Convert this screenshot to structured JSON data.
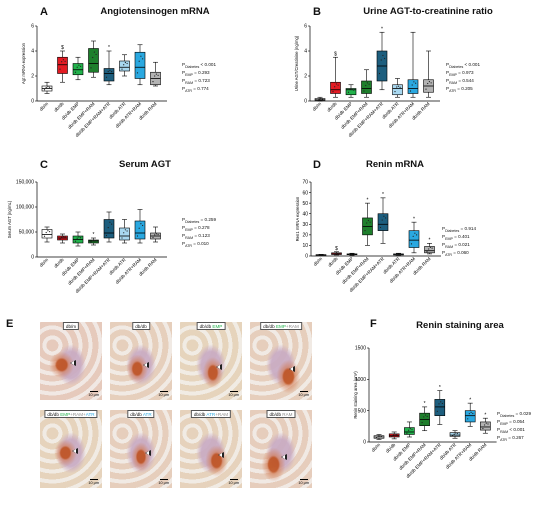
{
  "groups": [
    "db/m",
    "db/db",
    "db/db EMP",
    "db/db EMP+RAM",
    "db/db EMP+RAM+ATR",
    "db/db ATR",
    "db/db ATR+RAM",
    "db/db RAM"
  ],
  "colors": {
    "db/m": "#ffffff",
    "db/db": "#e31b23",
    "db/db EMP": "#22b24c",
    "db/db EMP+RAM": "#1e7f2c",
    "db/db EMP+RAM+ATR": "#1d5e7e",
    "db/db ATR": "#a9d8f0",
    "db/db ATR+RAM": "#2aa8e0",
    "db/db RAM": "#b3b3b3"
  },
  "panels": {
    "A": {
      "label": "A",
      "title": "Angiotensinogen mRNA",
      "stats": [
        "Pₐₐₐₐₐₐ < 0.001"
      ],
      "stats_lines": [
        {
          "sym": "P",
          "sub": "Diabetes",
          "val": "< 0.001"
        },
        {
          "sym": "P",
          "sub": "EMP",
          "val": "= 0.293"
        },
        {
          "sym": "P",
          "sub": "RAM",
          "val": "= 0.723"
        },
        {
          "sym": "P",
          "sub": "ATR",
          "val": "= 0.774"
        }
      ]
    },
    "B": {
      "label": "B",
      "title": "Urine AGT-to-creatinine ratio",
      "stats_lines": [
        {
          "sym": "P",
          "sub": "Diabetes",
          "val": "< 0.001"
        },
        {
          "sym": "P",
          "sub": "EMP",
          "val": "= 0.973"
        },
        {
          "sym": "P",
          "sub": "RAM",
          "val": "= 0.544"
        },
        {
          "sym": "P",
          "sub": "ATR",
          "val": "= 0.205"
        }
      ]
    },
    "C": {
      "label": "C",
      "title": "Serum AGT",
      "stats_lines": [
        {
          "sym": "P",
          "sub": "Diabetes",
          "val": "= 0.259"
        },
        {
          "sym": "P",
          "sub": "EMP",
          "val": "= 0.278"
        },
        {
          "sym": "P",
          "sub": "RAM",
          "val": "= 0.123"
        },
        {
          "sym": "P",
          "sub": "ATR",
          "val": "= 0.010"
        }
      ]
    },
    "D": {
      "label": "D",
      "title": "Renin mRNA",
      "stats_lines": [
        {
          "sym": "P",
          "sub": "Diabetes",
          "val": "= 0.914"
        },
        {
          "sym": "P",
          "sub": "EMP",
          "val": "= 0.401"
        },
        {
          "sym": "P",
          "sub": "RAM",
          "val": "= 0.021"
        },
        {
          "sym": "P",
          "sub": "ATR",
          "val": "= 0.060"
        }
      ]
    },
    "E": {
      "label": "E"
    },
    "F": {
      "label": "F",
      "title": "Renin staining area",
      "stats_lines": [
        {
          "sym": "P",
          "sub": "Diabetes",
          "val": "= 0.029"
        },
        {
          "sym": "P",
          "sub": "EMP",
          "val": "= 0.054"
        },
        {
          "sym": "P",
          "sub": "RAM",
          "val": "< 0.001"
        },
        {
          "sym": "P",
          "sub": "ATR",
          "val": "= 0.267"
        }
      ]
    }
  },
  "micrographs": {
    "scale_label": "10 µm",
    "tiles": [
      {
        "parts": [
          {
            "t": "db/m",
            "c": "#111111"
          }
        ]
      },
      {
        "parts": [
          {
            "t": "db/db",
            "c": "#111111"
          }
        ]
      },
      {
        "parts": [
          {
            "t": "db/db ",
            "c": "#111111"
          },
          {
            "t": "EMP",
            "c": "#22b24c"
          }
        ]
      },
      {
        "parts": [
          {
            "t": "db/db ",
            "c": "#111111"
          },
          {
            "t": "EMP",
            "c": "#22b24c"
          },
          {
            "t": "+RAM",
            "c": "#8a8a8a"
          }
        ]
      },
      {
        "parts": [
          {
            "t": "db/db ",
            "c": "#111111"
          },
          {
            "t": "EMP",
            "c": "#22b24c"
          },
          {
            "t": "+RAM+",
            "c": "#8a8a8a"
          },
          {
            "t": "ATR",
            "c": "#2aa8e0"
          }
        ]
      },
      {
        "parts": [
          {
            "t": "db/db ",
            "c": "#111111"
          },
          {
            "t": "ATR",
            "c": "#2aa8e0"
          }
        ]
      },
      {
        "parts": [
          {
            "t": "db/db ",
            "c": "#111111"
          },
          {
            "t": "ATR",
            "c": "#2aa8e0"
          },
          {
            "t": "+RAM",
            "c": "#8a8a8a"
          }
        ]
      },
      {
        "parts": [
          {
            "t": "db/db ",
            "c": "#111111"
          },
          {
            "t": "RAM",
            "c": "#8a8a8a"
          }
        ]
      }
    ]
  },
  "chart_data": [
    {
      "panel": "A",
      "type": "box",
      "title": "Angiotensinogen mRNA",
      "ylabel": "Agt mRNA expression",
      "ylim": [
        0,
        6
      ],
      "yticks": [
        0,
        2,
        4,
        6
      ],
      "categories": [
        "db/m",
        "db/db",
        "db/db EMP",
        "db/db EMP+RAM",
        "db/db EMP+RAM+ATR",
        "db/db ATR",
        "db/db ATR+RAM",
        "db/db RAM"
      ],
      "boxes": [
        {
          "min": 0.6,
          "q1": 0.8,
          "median": 1.0,
          "q3": 1.2,
          "max": 1.5
        },
        {
          "min": 1.5,
          "q1": 2.2,
          "median": 2.9,
          "q3": 3.5,
          "max": 4.0
        },
        {
          "min": 1.7,
          "q1": 2.1,
          "median": 2.5,
          "q3": 3.0,
          "max": 3.5
        },
        {
          "min": 1.9,
          "q1": 2.3,
          "median": 3.0,
          "q3": 4.2,
          "max": 4.8
        },
        {
          "min": 1.3,
          "q1": 1.6,
          "median": 2.2,
          "q3": 2.6,
          "max": 4.0
        },
        {
          "min": 2.0,
          "q1": 2.4,
          "median": 2.7,
          "q3": 3.2,
          "max": 3.7
        },
        {
          "min": 1.3,
          "q1": 1.8,
          "median": 2.7,
          "q3": 3.9,
          "max": 4.5
        },
        {
          "min": 1.2,
          "q1": 1.3,
          "median": 1.8,
          "q3": 2.3,
          "max": 3.1
        }
      ],
      "markers": [
        "",
        "$",
        "",
        "",
        "*",
        "",
        "",
        ""
      ]
    },
    {
      "panel": "B",
      "type": "box",
      "title": "Urine AGT-to-creatinine ratio",
      "ylabel": "Urine AGT/Creatinine (ng/mg)",
      "ylim": [
        0,
        6
      ],
      "yticks": [
        0,
        2,
        4,
        6
      ],
      "categories": [
        "db/m",
        "db/db",
        "db/db EMP",
        "db/db EMP+RAM",
        "db/db EMP+RAM+ATR",
        "db/db ATR",
        "db/db ATR+RAM",
        "db/db RAM"
      ],
      "boxes": [
        {
          "min": 0.0,
          "q1": 0.05,
          "median": 0.1,
          "q3": 0.2,
          "max": 0.3
        },
        {
          "min": 0.3,
          "q1": 0.6,
          "median": 0.9,
          "q3": 1.5,
          "max": 3.5
        },
        {
          "min": 0.3,
          "q1": 0.5,
          "median": 0.9,
          "q3": 1.0,
          "max": 1.3
        },
        {
          "min": 0.3,
          "q1": 0.6,
          "median": 1.0,
          "q3": 1.6,
          "max": 2.5
        },
        {
          "min": 0.9,
          "q1": 1.6,
          "median": 2.8,
          "q3": 4.0,
          "max": 5.5
        },
        {
          "min": 0.3,
          "q1": 0.5,
          "median": 1.0,
          "q3": 1.3,
          "max": 1.8
        },
        {
          "min": 0.3,
          "q1": 0.6,
          "median": 1.0,
          "q3": 1.7,
          "max": 5.5
        },
        {
          "min": 0.3,
          "q1": 0.7,
          "median": 1.2,
          "q3": 1.7,
          "max": 4.0
        }
      ],
      "markers": [
        "",
        "$",
        "",
        "",
        "*",
        "",
        "",
        ""
      ]
    },
    {
      "panel": "C",
      "type": "box",
      "title": "Serum AGT",
      "ylabel": "Serum AGT (ng/mL)",
      "ylim": [
        0,
        150000
      ],
      "yticks": [
        0,
        50000,
        100000,
        150000
      ],
      "ytick_labels": [
        "0",
        "50,000",
        "100,000",
        "150,000"
      ],
      "categories": [
        "db/m",
        "db/db",
        "db/db EMP",
        "db/db EMP+RAM",
        "db/db EMP+RAM+ATR",
        "db/db ATR",
        "db/db ATR+RAM",
        "db/db RAM"
      ],
      "boxes": [
        {
          "min": 30000,
          "q1": 38000,
          "median": 45000,
          "q3": 55000,
          "max": 60000
        },
        {
          "min": 28000,
          "q1": 34000,
          "median": 38000,
          "q3": 42000,
          "max": 46000
        },
        {
          "min": 22000,
          "q1": 28000,
          "median": 35000,
          "q3": 42000,
          "max": 50000
        },
        {
          "min": 24000,
          "q1": 28000,
          "median": 32000,
          "q3": 34000,
          "max": 38000
        },
        {
          "min": 30000,
          "q1": 38000,
          "median": 48000,
          "q3": 75000,
          "max": 90000
        },
        {
          "min": 28000,
          "q1": 34000,
          "median": 42000,
          "q3": 58000,
          "max": 75000
        },
        {
          "min": 28000,
          "q1": 36000,
          "median": 48000,
          "q3": 72000,
          "max": 95000
        },
        {
          "min": 30000,
          "q1": 36000,
          "median": 42000,
          "q3": 48000,
          "max": 60000
        }
      ],
      "markers": [
        "",
        "",
        "",
        "*",
        "",
        "",
        "",
        ""
      ]
    },
    {
      "panel": "D",
      "type": "box",
      "title": "Renin mRNA",
      "ylabel": "Ren1 mRNA expression",
      "ylim": [
        0,
        70
      ],
      "yticks": [
        0,
        10,
        20,
        30,
        40,
        50,
        60,
        70
      ],
      "categories": [
        "db/m",
        "db/db",
        "db/db EMP",
        "db/db EMP+RAM",
        "db/db EMP+RAM+ATR",
        "db/db ATR",
        "db/db ATR+RAM",
        "db/db RAM"
      ],
      "boxes": [
        {
          "min": 0.5,
          "q1": 0.7,
          "median": 1.0,
          "q3": 1.3,
          "max": 1.6
        },
        {
          "min": 1.0,
          "q1": 1.4,
          "median": 2.0,
          "q3": 3.0,
          "max": 4.0
        },
        {
          "min": 0.8,
          "q1": 1.2,
          "median": 1.5,
          "q3": 2.0,
          "max": 2.6
        },
        {
          "min": 10,
          "q1": 20,
          "median": 28,
          "q3": 36,
          "max": 50
        },
        {
          "min": 12,
          "q1": 24,
          "median": 30,
          "q3": 40,
          "max": 55
        },
        {
          "min": 0.8,
          "q1": 1.0,
          "median": 1.4,
          "q3": 2.0,
          "max": 2.6
        },
        {
          "min": 3,
          "q1": 8,
          "median": 15,
          "q3": 24,
          "max": 32
        },
        {
          "min": 2,
          "q1": 3,
          "median": 5,
          "q3": 9,
          "max": 12
        }
      ],
      "markers": [
        "",
        "$",
        "",
        "*",
        "*",
        "",
        "*",
        "*"
      ]
    },
    {
      "panel": "F",
      "type": "box",
      "title": "Renin staining area",
      "ylabel": "Renin staining area (µm²)",
      "ylim": [
        0,
        1500
      ],
      "yticks": [
        0,
        500,
        1000,
        1500
      ],
      "categories": [
        "db/m",
        "db/db",
        "db/db EMP",
        "db/db EMP+RAM",
        "db/db EMP+RAM+ATR",
        "db/db ATR",
        "db/db ATR+RAM",
        "db/db RAM"
      ],
      "boxes": [
        {
          "min": 40,
          "q1": 60,
          "median": 80,
          "q3": 100,
          "max": 120
        },
        {
          "min": 50,
          "q1": 80,
          "median": 100,
          "q3": 130,
          "max": 160
        },
        {
          "min": 80,
          "q1": 120,
          "median": 160,
          "q3": 230,
          "max": 320
        },
        {
          "min": 180,
          "q1": 260,
          "median": 360,
          "q3": 460,
          "max": 560
        },
        {
          "min": 280,
          "q1": 420,
          "median": 560,
          "q3": 680,
          "max": 820
        },
        {
          "min": 60,
          "q1": 90,
          "median": 110,
          "q3": 150,
          "max": 180
        },
        {
          "min": 250,
          "q1": 320,
          "median": 420,
          "q3": 500,
          "max": 620
        },
        {
          "min": 140,
          "q1": 190,
          "median": 240,
          "q3": 320,
          "max": 380
        }
      ],
      "markers": [
        "",
        "",
        "",
        "*",
        "*",
        "",
        "*",
        "*"
      ]
    }
  ]
}
